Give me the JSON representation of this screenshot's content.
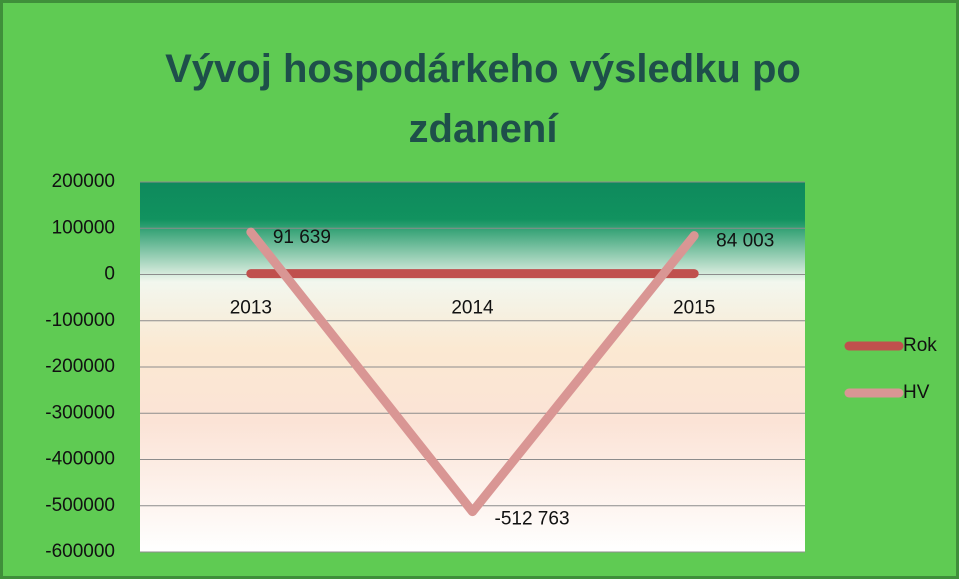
{
  "chart_data": {
    "type": "line",
    "title": "Vývoj hospodárkeho výsledku po zdanení",
    "categories": [
      "2013",
      "2014",
      "2015"
    ],
    "series": [
      {
        "name": "Rok",
        "color": "#c0504d",
        "values": [
          2013,
          2014,
          2015
        ]
      },
      {
        "name": "HV",
        "color": "#d99694",
        "values": [
          91639,
          -512763,
          84003
        ],
        "value_labels": [
          "91 639",
          "-512 763",
          "84 003"
        ]
      }
    ],
    "ylim": [
      -600000,
      200000
    ],
    "yticks": [
      -600000,
      -500000,
      -400000,
      -300000,
      -200000,
      -100000,
      0,
      100000,
      200000
    ],
    "grid": true,
    "legend": "right"
  }
}
